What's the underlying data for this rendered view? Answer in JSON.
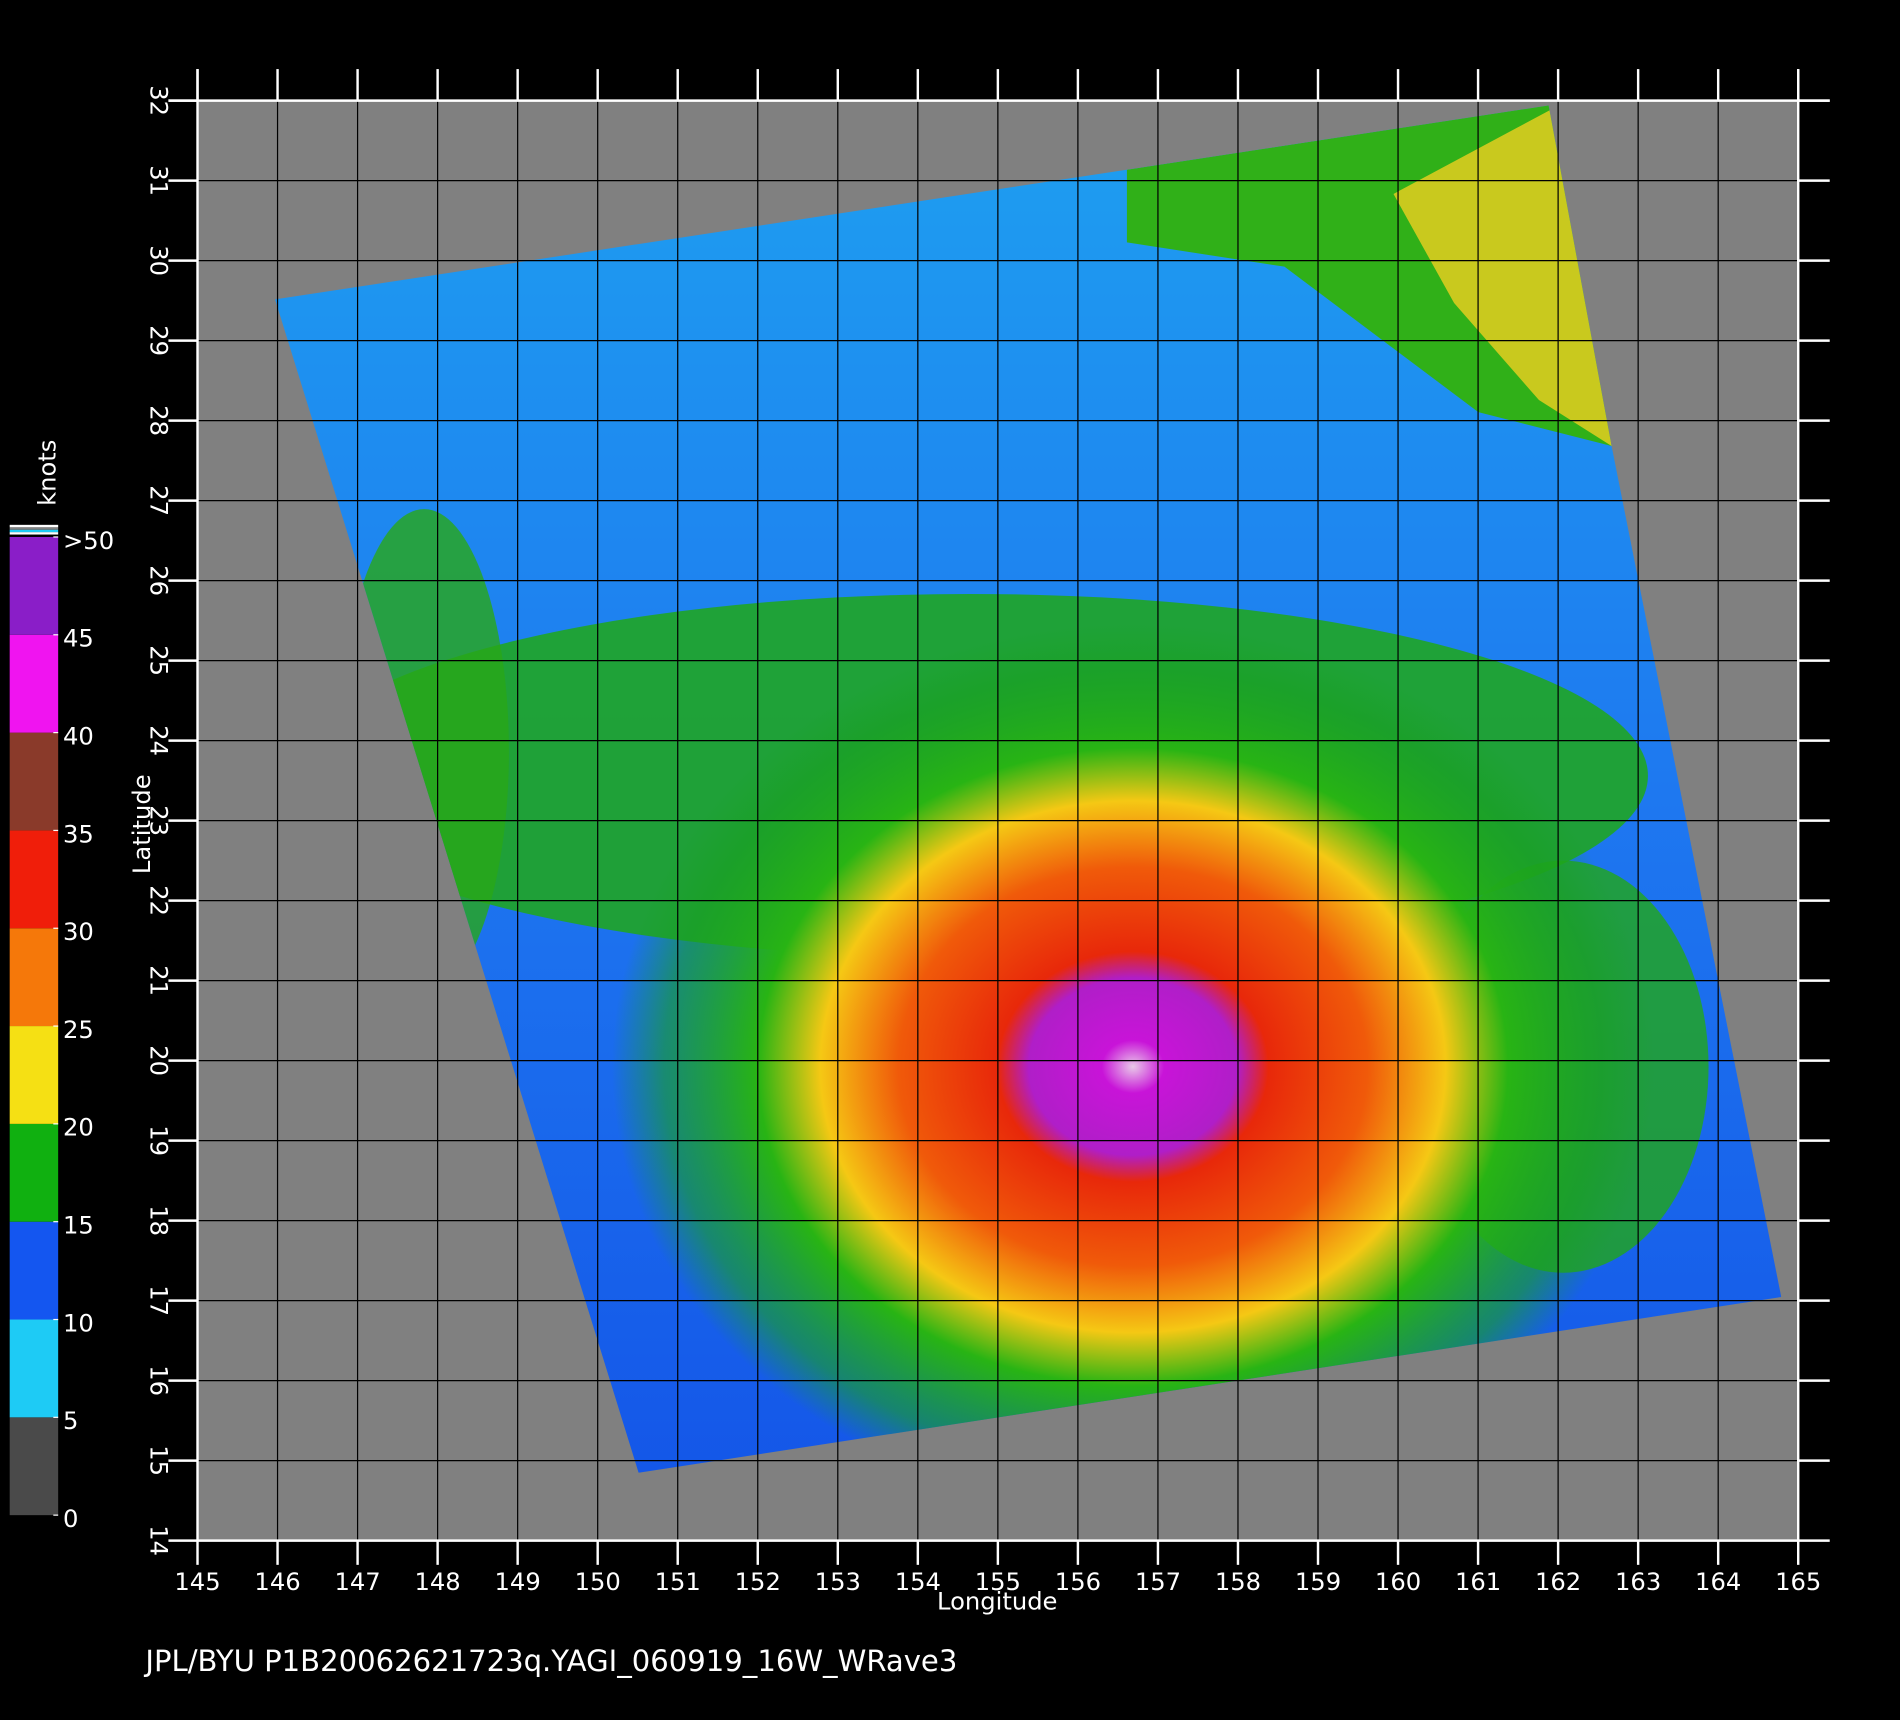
{
  "chart_data": {
    "type": "map",
    "title": "JPL/BYU  P1B20062621723q.YAGI_060919_16W_WRave3",
    "xlabel": "Longitude",
    "ylabel": "Latitude",
    "xlim": [
      145,
      165
    ],
    "ylim": [
      14,
      32
    ],
    "xticks": [
      145,
      146,
      147,
      148,
      149,
      150,
      151,
      152,
      153,
      154,
      155,
      156,
      157,
      158,
      159,
      160,
      161,
      162,
      163,
      164,
      165
    ],
    "yticks": [
      14,
      15,
      16,
      17,
      18,
      19,
      20,
      21,
      22,
      23,
      24,
      25,
      26,
      27,
      28,
      29,
      30,
      31,
      32
    ],
    "grid": true,
    "colorbar": {
      "label": "knots",
      "lim": [
        0,
        50
      ],
      "ticks": [
        0,
        5,
        10,
        15,
        20,
        25,
        30,
        35,
        40,
        45,
        {
          "value": 50,
          "label": ">50"
        }
      ],
      "colors": [
        "#4a4a4a",
        "#1ecbf5",
        "#1456f0",
        "#10b010",
        "#f5e014",
        "#f5780a",
        "#f01e0a",
        "#8a3a2a",
        "#f014f0",
        "#8a1ec8"
      ]
    }
  }
}
